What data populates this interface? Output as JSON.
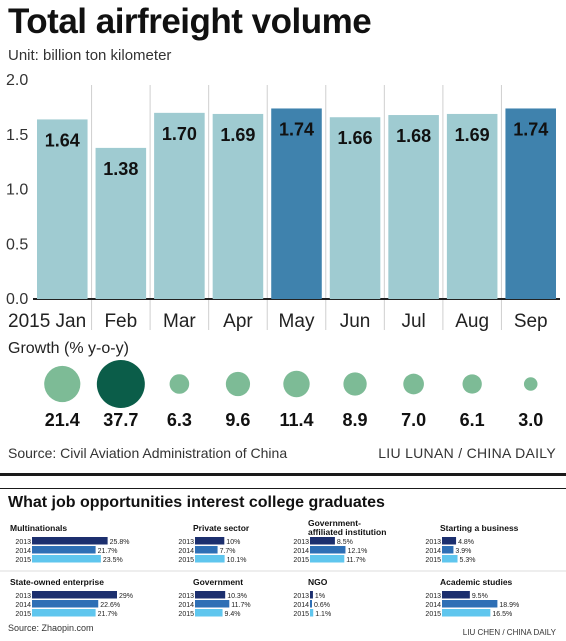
{
  "header": {
    "title": "Total airfreight volume",
    "unit": "Unit: billion ton kilometer",
    "growth_label": "Growth (% y-o-y)",
    "source": "Source: Civil Aviation Administration of China",
    "credit": "LIU LUNAN / CHINA DAILY"
  },
  "chart_data": [
    {
      "type": "bar",
      "title": "Total airfreight volume",
      "subtitle": "Unit: billion ton kilometer",
      "categories": [
        "2015 Jan",
        "Feb",
        "Mar",
        "Apr",
        "May",
        "Jun",
        "Jul",
        "Aug",
        "Sep"
      ],
      "values": [
        1.64,
        1.38,
        1.7,
        1.69,
        1.74,
        1.66,
        1.68,
        1.69,
        1.74
      ],
      "value_labels": [
        "1.64",
        "1.38",
        "1.70",
        "1.69",
        "1.74",
        "1.66",
        "1.68",
        "1.69",
        "1.74"
      ],
      "growth": [
        21.4,
        37.7,
        6.3,
        9.6,
        11.4,
        8.9,
        7.0,
        6.1,
        3.0
      ],
      "growth_labels": [
        "21.4",
        "37.7",
        "6.3",
        "9.6",
        "11.4",
        "8.9",
        "7.0",
        "6.1",
        "3.0"
      ],
      "ylim": [
        0,
        2.0
      ],
      "yticks": [
        "0.0",
        "0.5",
        "1.0",
        "1.5",
        "2.0"
      ],
      "highlight_categories": [
        "May",
        "Sep"
      ],
      "colors": {
        "bar": "#9fcbd1",
        "bar_highlight": "#3f82ad",
        "bubble": "#7dbb96",
        "bubble_highlight": "#0b5d49"
      },
      "grid": false
    },
    {
      "type": "bar",
      "orientation": "horizontal",
      "title": "What job opportunities interest college graduates",
      "years": [
        "2013",
        "2014",
        "2015"
      ],
      "colors": [
        "#1c2f6e",
        "#2e6fb5",
        "#5fc6ee"
      ],
      "groups": [
        {
          "name": "Multinationals",
          "values": [
            25.8,
            21.7,
            23.5
          ],
          "labels": [
            "25.8%",
            "21.7%",
            "23.5%"
          ]
        },
        {
          "name": "Private sector",
          "values": [
            10,
            7.7,
            10.1
          ],
          "labels": [
            "10%",
            "7.7%",
            "10.1%"
          ]
        },
        {
          "name": "Government-affiliated institution",
          "name_lines": [
            "Government-",
            "affiliated institution"
          ],
          "values": [
            8.5,
            12.1,
            11.7
          ],
          "labels": [
            "8.5%",
            "12.1%",
            "11.7%"
          ]
        },
        {
          "name": "Starting a business",
          "values": [
            4.8,
            3.9,
            5.3
          ],
          "labels": [
            "4.8%",
            "3.9%",
            "5.3%"
          ]
        },
        {
          "name": "State-owned enterprise",
          "values": [
            29,
            22.6,
            21.7
          ],
          "labels": [
            "29%",
            "22.6%",
            "21.7%"
          ]
        },
        {
          "name": "Government",
          "values": [
            10.3,
            11.7,
            9.4
          ],
          "labels": [
            "10.3%",
            "11.7%",
            "9.4%"
          ]
        },
        {
          "name": "NGO",
          "values": [
            1,
            0.6,
            1.1
          ],
          "labels": [
            "1%",
            "0.6%",
            "1.1%"
          ]
        },
        {
          "name": "Academic studies",
          "values": [
            9.5,
            18.9,
            16.5
          ],
          "labels": [
            "9.5%",
            "18.9%",
            "16.5%"
          ]
        }
      ]
    }
  ],
  "footer2": {
    "source": "Source: Zhaopin.com",
    "credit": "LIU CHEN / CHINA DAILY"
  }
}
